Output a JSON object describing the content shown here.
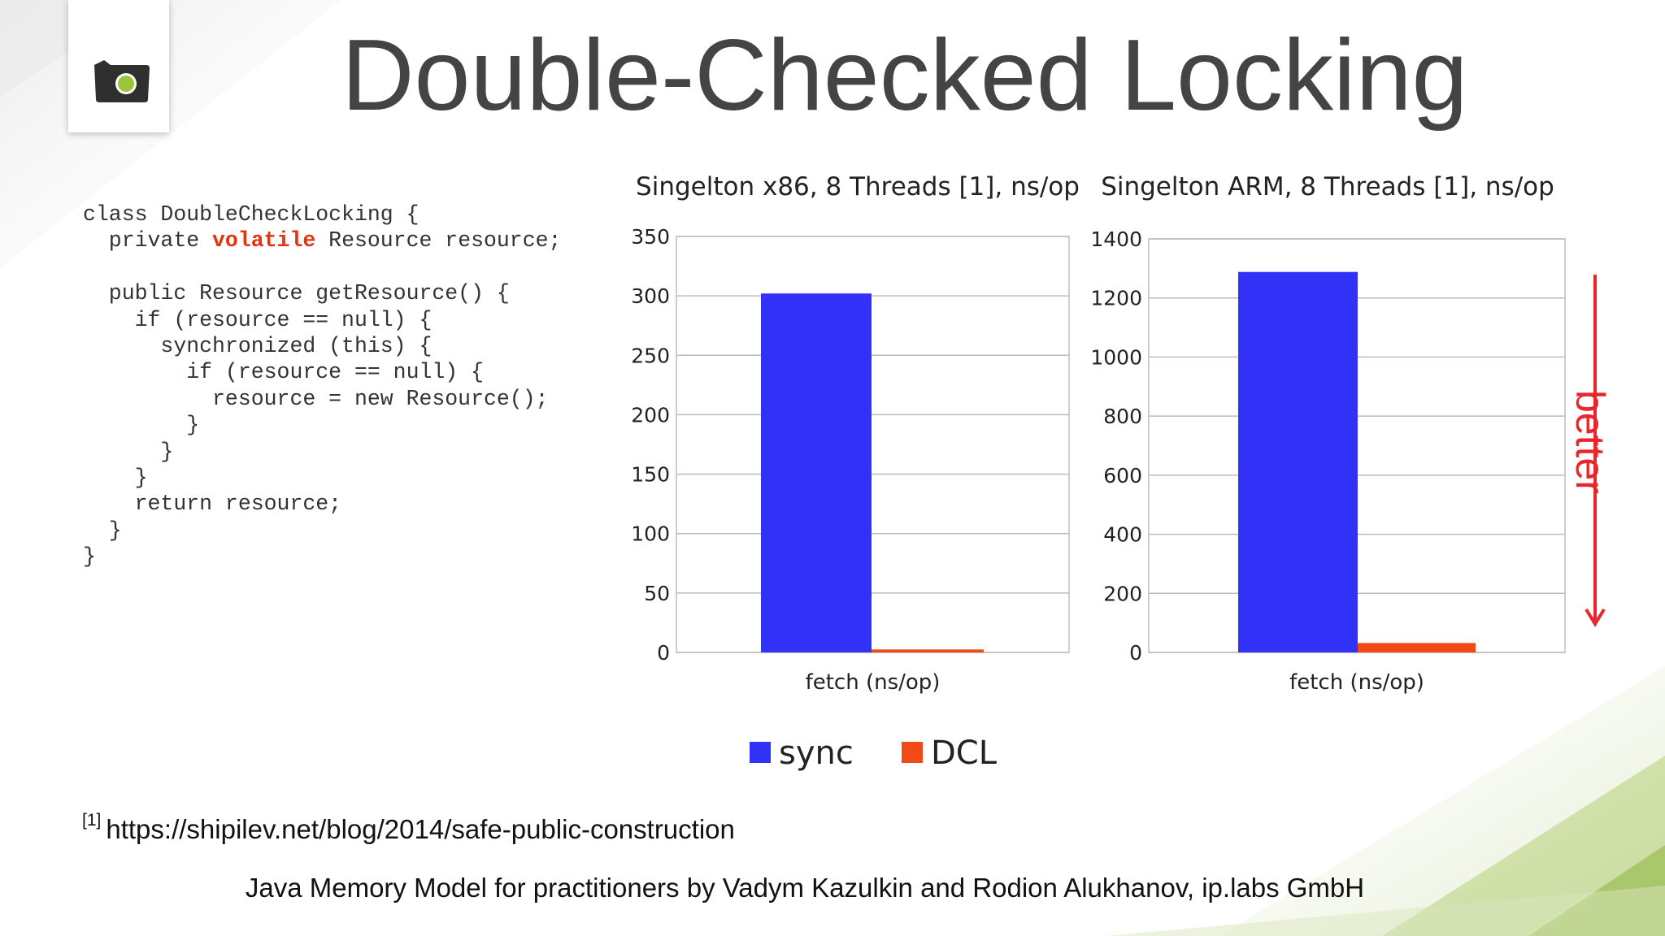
{
  "slide": {
    "title": "Double-Checked Locking",
    "code_lines": [
      "class DoubleCheckLocking {",
      "  private |volatile| Resource resource;",
      "",
      "  public Resource getResource() {",
      "    if (resource == null) {",
      "      synchronized (this) {",
      "        if (resource == null) {",
      "          resource = new Resource();",
      "        }",
      "      }",
      "    }",
      "    return resource;",
      "  }",
      "}"
    ],
    "code_keyword": "volatile",
    "better_label": "better",
    "footnote_marker": "[1]",
    "footnote_url": "https://shipilev.net/blog/2014/safe-public-construction",
    "footer": "Java Memory Model for practitioners by Vadym Kazulkin and Rodion Alukhanov, ip.labs GmbH"
  },
  "colors": {
    "sync": "#3131f7",
    "dcl": "#f24a17",
    "arrow": "#e8262b",
    "title": "#444444",
    "keyword": "#e2340f",
    "accent_green": "#8db43e"
  },
  "legend": [
    {
      "label": "sync",
      "color": "#3131f7"
    },
    {
      "label": "DCL",
      "color": "#f24a17"
    }
  ],
  "chart_data": [
    {
      "type": "bar",
      "title": "Singelton x86, 8 Threads [1], ns/op",
      "categories": [
        "fetch (ns/op)"
      ],
      "xlabel": "",
      "ylabel": "",
      "ylim": [
        0,
        350
      ],
      "yticks": [
        0,
        50,
        100,
        150,
        200,
        250,
        300,
        350
      ],
      "grid": true,
      "legend": "bottom",
      "series": [
        {
          "name": "sync",
          "values": [
            302
          ]
        },
        {
          "name": "DCL",
          "values": [
            2.5
          ]
        }
      ]
    },
    {
      "type": "bar",
      "title": "Singelton ARM, 8 Threads [1], ns/op",
      "categories": [
        "fetch (ns/op)"
      ],
      "xlabel": "",
      "ylabel": "",
      "ylim": [
        0,
        1400
      ],
      "yticks": [
        0,
        200,
        400,
        600,
        800,
        1000,
        1200,
        1400
      ],
      "grid": true,
      "legend": "bottom",
      "series": [
        {
          "name": "sync",
          "values": [
            1288
          ]
        },
        {
          "name": "DCL",
          "values": [
            32
          ]
        }
      ]
    }
  ]
}
